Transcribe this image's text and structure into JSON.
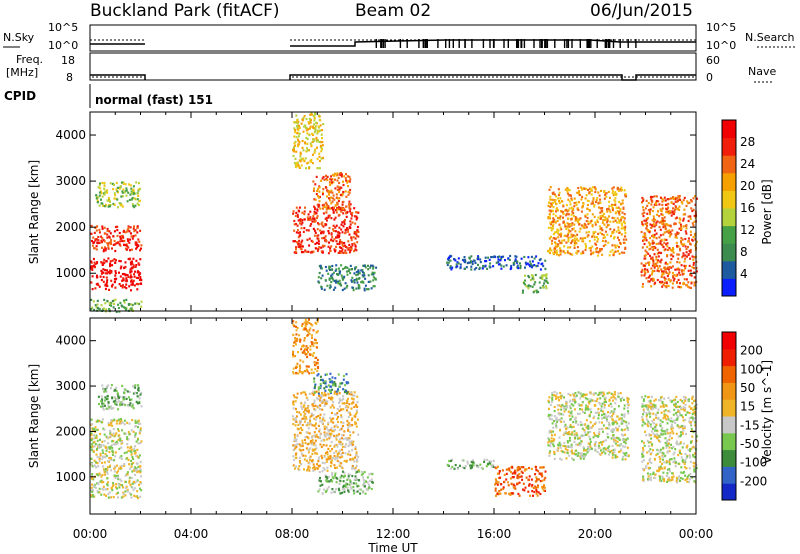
{
  "header": {
    "site_title": "Buckland Park (fitACF)",
    "beam": "Beam 02",
    "date": "06/Jun/2015"
  },
  "top_panels": {
    "nsky_label": "N.Sky",
    "nsky_ticks": [
      "10^5",
      "10^0"
    ],
    "nsearch_label": "N.Search",
    "nsearch_ticks": [
      "10^5",
      "10^0"
    ],
    "freq_label_line1": "Freq.",
    "freq_label_line2": "[MHz]",
    "freq_ticks": [
      "18",
      "8"
    ],
    "nave_label": "Nave",
    "nave_ticks": [
      "60",
      "0"
    ],
    "cpid_label": "CPID",
    "cpid_value": "normal (fast) 151"
  },
  "colors": {
    "power_scale": [
      "#0a1eff",
      "#1e5aa0",
      "#3c8c50",
      "#46a046",
      "#b4d23c",
      "#f0c814",
      "#f5a000",
      "#f06414",
      "#f01e0a",
      "#f00000"
    ],
    "velocity_scale": [
      "#1428c8",
      "#3264c8",
      "#3c8c3c",
      "#78c850",
      "#c8c8c8",
      "#f0b428",
      "#f09614",
      "#f06400",
      "#f01e00",
      "#f00000"
    ],
    "ground_scatter": "#b4b4b4"
  },
  "chart_data": [
    {
      "type": "heatmap",
      "panel": "power",
      "ylabel": "Slant Range [km]",
      "xlabel": "Time UT",
      "x_ticks": [
        "00:00",
        "04:00",
        "08:00",
        "12:00",
        "16:00",
        "20:00",
        "00:00"
      ],
      "xlim_hours": [
        0,
        24
      ],
      "y_ticks": [
        1000,
        2000,
        3000,
        4000
      ],
      "ylim_km": [
        180,
        4500
      ],
      "colorbar": {
        "label": "Power [dB]",
        "ticks": [
          4,
          8,
          12,
          16,
          20,
          24,
          28
        ]
      },
      "regions": [
        {
          "t": [
            0.0,
            2.0
          ],
          "r": [
            650,
            1350
          ],
          "level": 9
        },
        {
          "t": [
            0.0,
            2.0
          ],
          "r": [
            1500,
            2050
          ],
          "level": 8
        },
        {
          "t": [
            0.2,
            2.0
          ],
          "r": [
            2450,
            3000
          ],
          "level": 4
        },
        {
          "t": [
            0.0,
            2.0
          ],
          "r": [
            180,
            450
          ],
          "level": 3
        },
        {
          "t": [
            8.0,
            10.6
          ],
          "r": [
            1450,
            2450
          ],
          "level": 8
        },
        {
          "t": [
            8.8,
            10.3
          ],
          "r": [
            2400,
            3200
          ],
          "level": 7
        },
        {
          "t": [
            8.0,
            9.2
          ],
          "r": [
            3300,
            4500
          ],
          "level": 5
        },
        {
          "t": [
            9.0,
            11.3
          ],
          "r": [
            650,
            1200
          ],
          "level": 2
        },
        {
          "t": [
            14.1,
            18.0
          ],
          "r": [
            1100,
            1400
          ],
          "level": 1
        },
        {
          "t": [
            17.1,
            18.1
          ],
          "r": [
            580,
            1000
          ],
          "level": 3
        },
        {
          "t": [
            18.1,
            21.2
          ],
          "r": [
            1400,
            2900
          ],
          "level": 6
        },
        {
          "t": [
            21.8,
            24.0
          ],
          "r": [
            700,
            2700
          ],
          "level": 7
        }
      ]
    },
    {
      "type": "heatmap",
      "panel": "velocity",
      "ylabel": "Slant Range [km]",
      "xlabel": "Time UT",
      "x_ticks": [
        "00:00",
        "04:00",
        "08:00",
        "12:00",
        "16:00",
        "20:00",
        "00:00"
      ],
      "xlim_hours": [
        0,
        24
      ],
      "y_ticks": [
        1000,
        2000,
        3000,
        4000
      ],
      "ylim_km": [
        180,
        4500
      ],
      "colorbar": {
        "label": "Velocity [m s^-1]",
        "ticks": [
          200,
          100,
          50,
          15,
          -15,
          -50,
          -100,
          -200
        ]
      },
      "regions": [
        {
          "t": [
            0.0,
            2.0
          ],
          "r": [
            550,
            2300
          ],
          "level": 4
        },
        {
          "t": [
            0.3,
            2.0
          ],
          "r": [
            2500,
            3050
          ],
          "level": 3
        },
        {
          "t": [
            8.0,
            10.6
          ],
          "r": [
            1150,
            2900
          ],
          "level": 5
        },
        {
          "t": [
            8.8,
            10.2
          ],
          "r": [
            2850,
            3300
          ],
          "level": 2
        },
        {
          "t": [
            8.0,
            9.0
          ],
          "r": [
            3300,
            4500
          ],
          "level": 6
        },
        {
          "t": [
            9.0,
            11.2
          ],
          "r": [
            650,
            1150
          ],
          "level": 3
        },
        {
          "t": [
            14.1,
            16.2
          ],
          "r": [
            1200,
            1400
          ],
          "level": 3
        },
        {
          "t": [
            16.0,
            18.0
          ],
          "r": [
            600,
            1250
          ],
          "level": 7
        },
        {
          "t": [
            18.1,
            21.3
          ],
          "r": [
            1400,
            2900
          ],
          "level": 4
        },
        {
          "t": [
            21.8,
            24.0
          ],
          "r": [
            900,
            2800
          ],
          "level": 4
        }
      ]
    }
  ]
}
